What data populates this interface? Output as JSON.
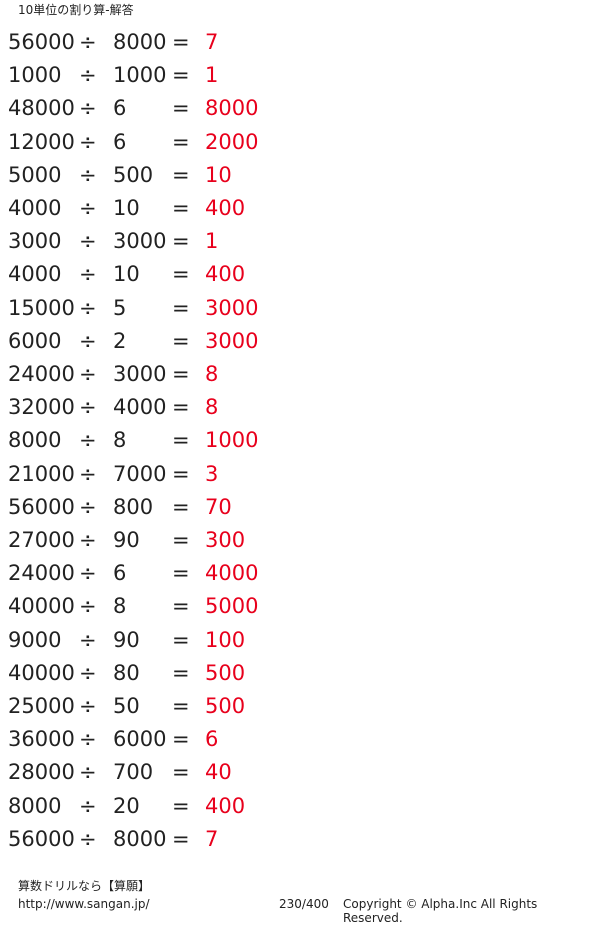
{
  "title": "10単位の割り算-解答",
  "problems": [
    {
      "dividend": "56000",
      "op": "÷",
      "divisor": "8000",
      "eq": "=",
      "answer": "7"
    },
    {
      "dividend": "1000",
      "op": "÷",
      "divisor": "1000",
      "eq": "=",
      "answer": "1"
    },
    {
      "dividend": "48000",
      "op": "÷",
      "divisor": "6",
      "eq": "=",
      "answer": "8000"
    },
    {
      "dividend": "12000",
      "op": "÷",
      "divisor": "6",
      "eq": "=",
      "answer": "2000"
    },
    {
      "dividend": "5000",
      "op": "÷",
      "divisor": "500",
      "eq": "=",
      "answer": "10"
    },
    {
      "dividend": "4000",
      "op": "÷",
      "divisor": "10",
      "eq": "=",
      "answer": "400"
    },
    {
      "dividend": "3000",
      "op": "÷",
      "divisor": "3000",
      "eq": "=",
      "answer": "1"
    },
    {
      "dividend": "4000",
      "op": "÷",
      "divisor": "10",
      "eq": "=",
      "answer": "400"
    },
    {
      "dividend": "15000",
      "op": "÷",
      "divisor": "5",
      "eq": "=",
      "answer": "3000"
    },
    {
      "dividend": "6000",
      "op": "÷",
      "divisor": "2",
      "eq": "=",
      "answer": "3000"
    },
    {
      "dividend": "24000",
      "op": "÷",
      "divisor": "3000",
      "eq": "=",
      "answer": "8"
    },
    {
      "dividend": "32000",
      "op": "÷",
      "divisor": "4000",
      "eq": "=",
      "answer": "8"
    },
    {
      "dividend": "8000",
      "op": "÷",
      "divisor": "8",
      "eq": "=",
      "answer": "1000"
    },
    {
      "dividend": "21000",
      "op": "÷",
      "divisor": "7000",
      "eq": "=",
      "answer": "3"
    },
    {
      "dividend": "56000",
      "op": "÷",
      "divisor": "800",
      "eq": "=",
      "answer": "70"
    },
    {
      "dividend": "27000",
      "op": "÷",
      "divisor": "90",
      "eq": "=",
      "answer": "300"
    },
    {
      "dividend": "24000",
      "op": "÷",
      "divisor": "6",
      "eq": "=",
      "answer": "4000"
    },
    {
      "dividend": "40000",
      "op": "÷",
      "divisor": "8",
      "eq": "=",
      "answer": "5000"
    },
    {
      "dividend": "9000",
      "op": "÷",
      "divisor": "90",
      "eq": "=",
      "answer": "100"
    },
    {
      "dividend": "40000",
      "op": "÷",
      "divisor": "80",
      "eq": "=",
      "answer": "500"
    },
    {
      "dividend": "25000",
      "op": "÷",
      "divisor": "50",
      "eq": "=",
      "answer": "500"
    },
    {
      "dividend": "36000",
      "op": "÷",
      "divisor": "6000",
      "eq": "=",
      "answer": "6"
    },
    {
      "dividend": "28000",
      "op": "÷",
      "divisor": "700",
      "eq": "=",
      "answer": "40"
    },
    {
      "dividend": "8000",
      "op": "÷",
      "divisor": "20",
      "eq": "=",
      "answer": "400"
    },
    {
      "dividend": "56000",
      "op": "÷",
      "divisor": "8000",
      "eq": "=",
      "answer": "7"
    }
  ],
  "footer": {
    "brand": "算数ドリルなら【算願】",
    "url": "http://www.sangan.jp/",
    "page": "230/400",
    "copyright": "Copyright © Alpha.Inc All Rights Reserved."
  },
  "colors": {
    "answer": "#e8001c",
    "text": "#222222"
  }
}
